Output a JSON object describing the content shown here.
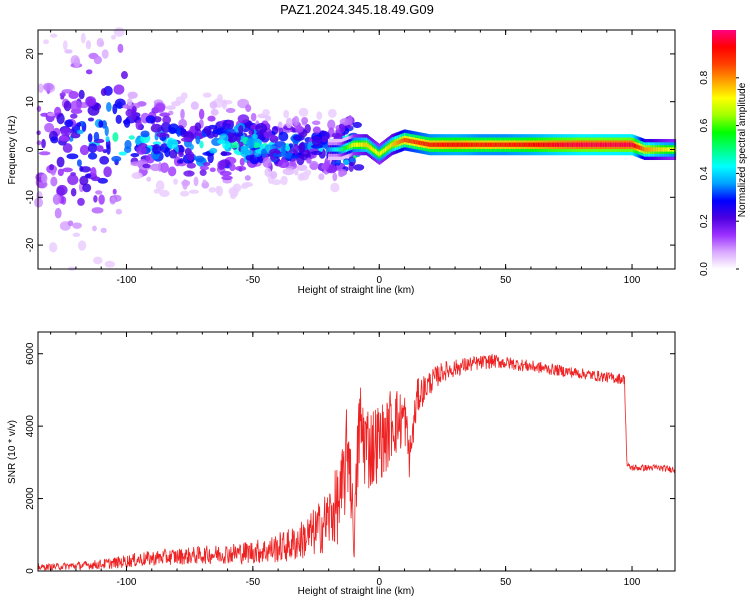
{
  "title": "PAZ1.2024.345.18.49.G09",
  "chart_data": [
    {
      "type": "heatmap",
      "xlabel": "Height of straight line (km)",
      "ylabel": "Frequency (Hz)",
      "xlim": [
        -135,
        117
      ],
      "ylim": [
        -25,
        25
      ],
      "xticks": [
        -100,
        -50,
        0,
        50,
        100
      ],
      "yticks": [
        -20,
        -10,
        0,
        10,
        20
      ],
      "colorbar": {
        "label": "Normalized spectral amplitude",
        "range": [
          0,
          1
        ],
        "ticks": [
          0.0,
          0.2,
          0.4,
          0.6,
          0.8
        ],
        "colormap": [
          "#ffffff",
          "#d9a8ff",
          "#9b30ff",
          "#4a00e0",
          "#0000ff",
          "#00a0ff",
          "#00ffff",
          "#00ff80",
          "#00ff00",
          "#a0ff00",
          "#ffff00",
          "#ffa000",
          "#ff4000",
          "#ff0000",
          "#ff0080"
        ]
      },
      "ridge": {
        "x": [
          -135,
          -120,
          -100,
          -90,
          -80,
          -70,
          -60,
          -50,
          -40,
          -30,
          -20,
          -15,
          -10,
          -5,
          0,
          5,
          10,
          20,
          30,
          40,
          50,
          60,
          70,
          80,
          90,
          100,
          105,
          110,
          117
        ],
        "y": [
          1,
          2,
          3,
          2,
          1,
          0.5,
          1,
          1.5,
          0.5,
          1,
          0,
          0,
          1,
          1,
          -1,
          1,
          2,
          1,
          1,
          1,
          1,
          1,
          1,
          1,
          1,
          1,
          0,
          0,
          0
        ],
        "amplitude": [
          0.15,
          0.3,
          0.4,
          0.4,
          0.35,
          0.4,
          0.4,
          0.45,
          0.4,
          0.35,
          0.35,
          0.5,
          0.7,
          0.75,
          0.7,
          0.75,
          0.85,
          0.9,
          0.92,
          0.9,
          0.9,
          0.92,
          0.95,
          0.97,
          0.97,
          0.97,
          0.8,
          0.75,
          0.7
        ]
      }
    },
    {
      "type": "line",
      "xlabel": "Height of straight line (km)",
      "ylabel": "SNR (10 * v/v)",
      "xlim": [
        -135,
        117
      ],
      "ylim": [
        0,
        6600
      ],
      "xticks": [
        -100,
        -50,
        0,
        50,
        100
      ],
      "yticks": [
        0,
        2000,
        4000,
        6000
      ],
      "color": "#ee2222",
      "series": [
        {
          "x": [
            -135,
            -125,
            -115,
            -105,
            -95,
            -85,
            -75,
            -65,
            -55,
            -45,
            -40,
            -35,
            -30,
            -25,
            -20,
            -15,
            -12,
            -10,
            -8,
            -5,
            -3,
            0,
            3,
            5,
            8,
            10,
            12,
            15,
            20,
            25,
            30,
            35,
            40,
            45,
            50,
            60,
            70,
            80,
            90,
            97,
            98,
            100,
            110,
            117
          ],
          "y": [
            100,
            130,
            160,
            220,
            320,
            380,
            420,
            460,
            500,
            560,
            640,
            720,
            880,
            1100,
            1450,
            2000,
            3600,
            800,
            4000,
            3500,
            3400,
            3600,
            3700,
            4200,
            4100,
            4300,
            3100,
            4800,
            5200,
            5500,
            5600,
            5700,
            5750,
            5800,
            5750,
            5650,
            5550,
            5450,
            5350,
            5300,
            2900,
            2850,
            2850,
            2800
          ],
          "noise": [
            80,
            100,
            120,
            160,
            200,
            220,
            240,
            260,
            300,
            360,
            420,
            480,
            560,
            700,
            900,
            1200,
            1500,
            600,
            1500,
            1300,
            1200,
            1100,
            1000,
            1100,
            900,
            800,
            600,
            500,
            350,
            280,
            240,
            220,
            200,
            200,
            180,
            170,
            160,
            150,
            150,
            150,
            90,
            90,
            90,
            90
          ]
        }
      ]
    }
  ]
}
